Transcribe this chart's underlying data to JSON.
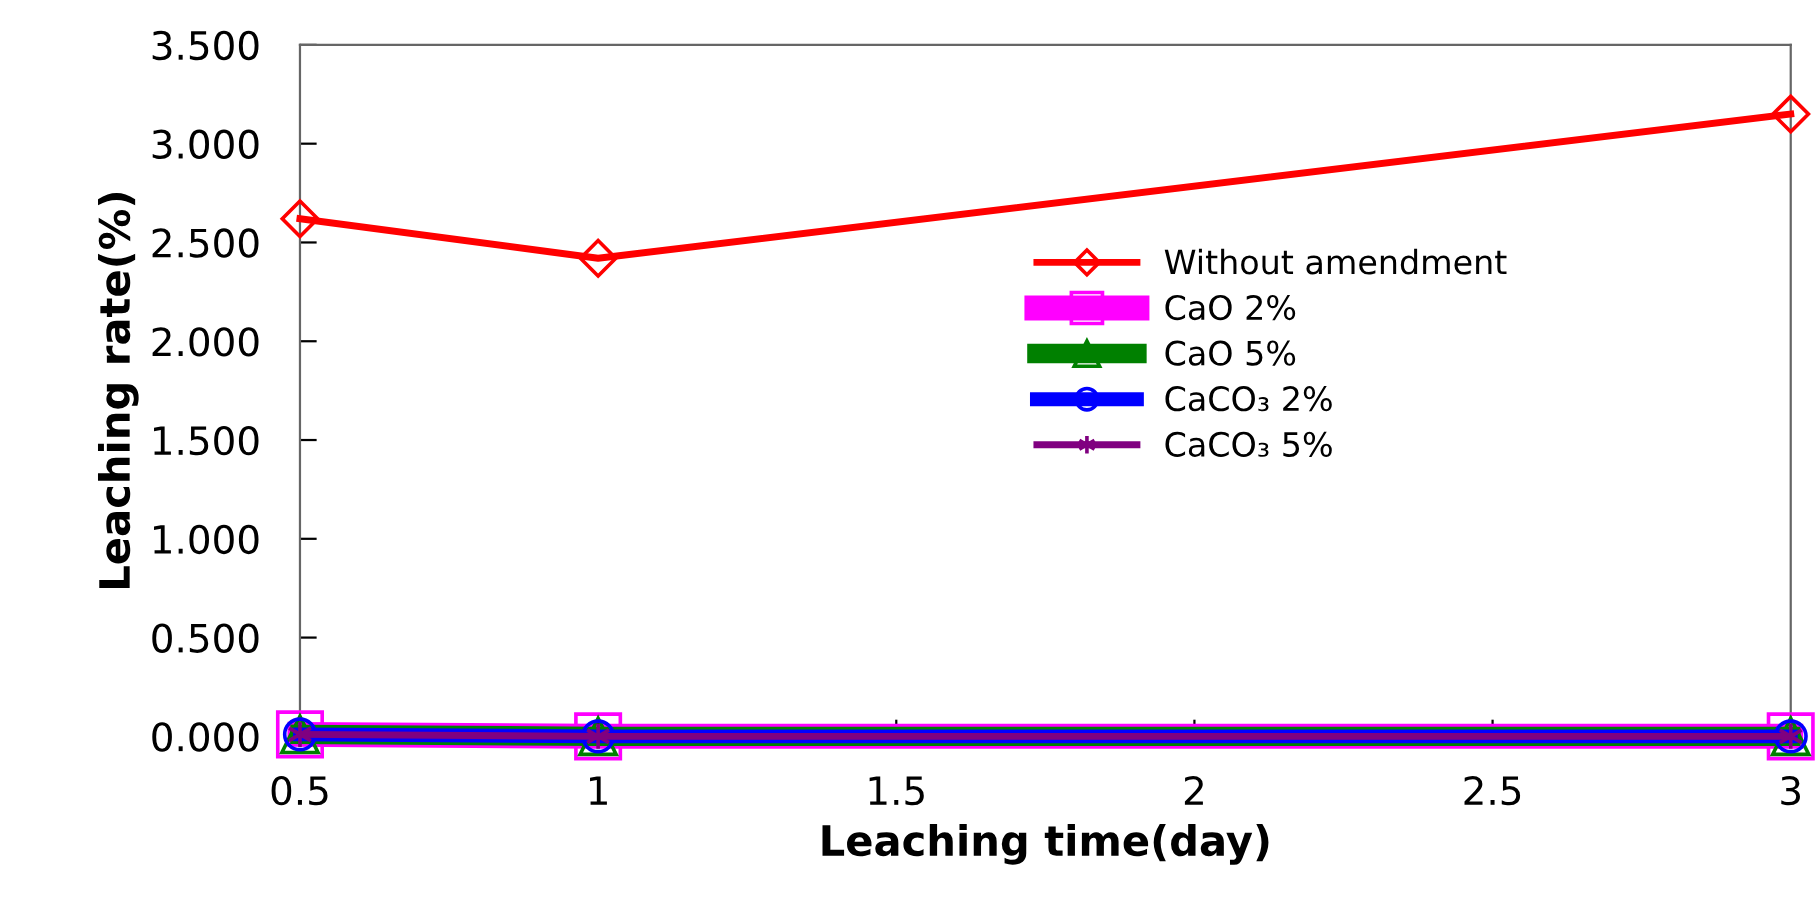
{
  "chart_data": {
    "type": "line",
    "xlabel": "Leaching time(day)",
    "ylabel": "Leaching rate(%)",
    "x": [
      0.5,
      1,
      3
    ],
    "series": [
      {
        "name": "Without amendment",
        "color": "#ff0000",
        "marker": "diamond",
        "values": [
          2.62,
          2.42,
          3.15
        ]
      },
      {
        "name": "CaO 2%",
        "color": "#ff00ff",
        "marker": "square",
        "values": [
          0.01,
          0.0,
          0.0
        ]
      },
      {
        "name": "CaO 5%",
        "color": "#008000",
        "marker": "triangle",
        "values": [
          0.01,
          0.0,
          0.0
        ]
      },
      {
        "name": "CaCO₃ 2%",
        "color": "#0000ff",
        "marker": "circle",
        "values": [
          0.01,
          0.0,
          0.0
        ]
      },
      {
        "name": "CaCO₃ 5%",
        "color": "#800080",
        "marker": "cross",
        "values": [
          0.01,
          0.0,
          0.0
        ]
      }
    ],
    "xlim": [
      0.5,
      3
    ],
    "xticks": [
      0.5,
      1,
      1.5,
      2,
      2.5,
      3
    ],
    "ylim": [
      0,
      3.5
    ],
    "yticks": [
      {
        "value": 0,
        "label": "0.000"
      },
      {
        "value": 0.5,
        "label": "0.500"
      },
      {
        "value": 1,
        "label": "1.000"
      },
      {
        "value": 1.5,
        "label": "1.500"
      },
      {
        "value": 2,
        "label": "2.000"
      },
      {
        "value": 2.5,
        "label": "2.500"
      },
      {
        "value": 3,
        "label": "3.000"
      },
      {
        "value": 3.5,
        "label": "3.500"
      }
    ],
    "grid": false,
    "legend": "right",
    "line_style": "solid"
  }
}
